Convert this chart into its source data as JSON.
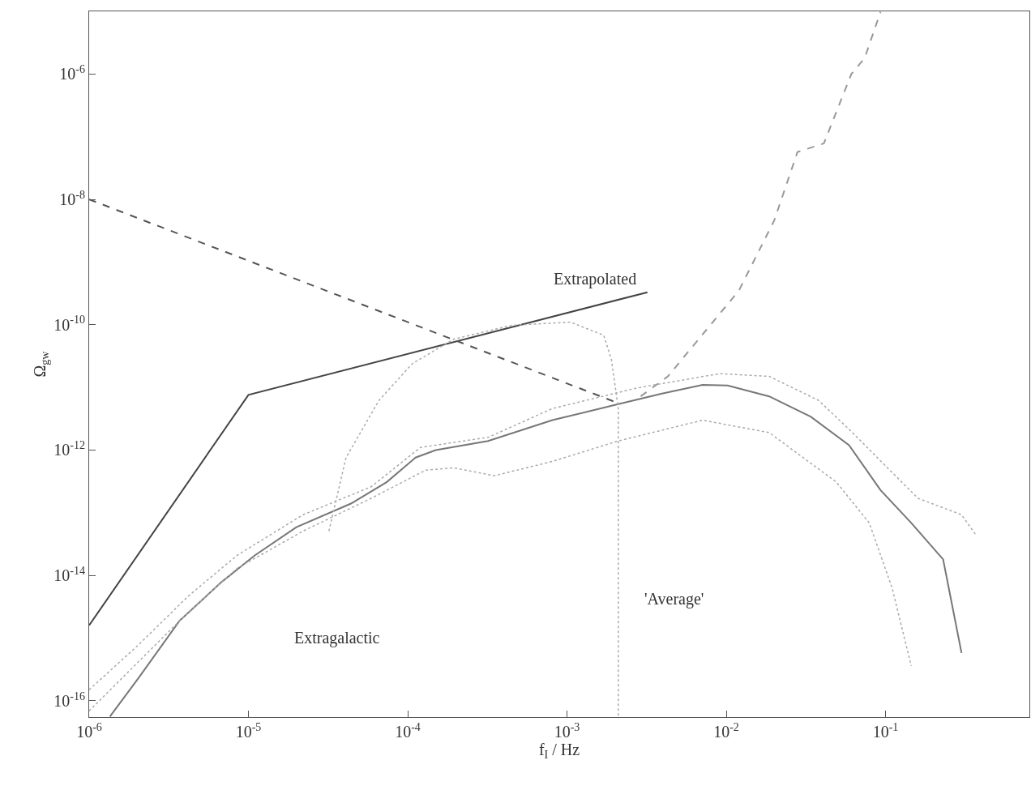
{
  "chart_data": {
    "type": "line",
    "xlabel": "f$_{I}$ / Hz",
    "ylabel": "Ω$_{gw}$",
    "log": "xy",
    "grid": false,
    "xlim": [
      1e-06,
      0.8
    ],
    "ylim": [
      5.5e-17,
      1e-05
    ],
    "xticks": [
      {
        "value": 1e-06,
        "label": "10$^{-6}$"
      },
      {
        "value": 1e-05,
        "label": "10$^{-5}$"
      },
      {
        "value": 0.0001,
        "label": "10$^{-4}$"
      },
      {
        "value": 0.001,
        "label": "10$^{-3}$"
      },
      {
        "value": 0.01,
        "label": "10$^{-2}$"
      },
      {
        "value": 0.1,
        "label": "10$^{-1}$"
      }
    ],
    "yticks": [
      {
        "value": 1e-16,
        "label": "10$^{-16}$"
      },
      {
        "value": 1e-14,
        "label": "10$^{-14}$"
      },
      {
        "value": 1e-12,
        "label": "10$^{-12}$"
      },
      {
        "value": 1e-10,
        "label": "10$^{-10}$"
      },
      {
        "value": 1e-08,
        "label": "10$^{-8}$"
      },
      {
        "value": 1e-06,
        "label": "10$^{-6}$"
      }
    ],
    "annotations": [
      "Extrapolated",
      "Extragalactic",
      "'Average'"
    ],
    "series": [
      {
        "color": "#444444",
        "line_style": "solid",
        "x": [
          1e-06,
          1e-05,
          0.0032
        ],
        "values": [
          1.6e-15,
          7.6e-12,
          3.3e-10
        ]
      },
      {
        "color": "#555555",
        "line_style": "dashed",
        "x": [
          1e-06,
          0.0021
        ],
        "values": [
          1e-08,
          5.6e-12
        ]
      },
      {
        "color": "#999999",
        "line_style": "dashed",
        "x": [
          0.0029,
          0.0043,
          0.012,
          0.02,
          0.028,
          0.041,
          0.061,
          0.074,
          0.093
        ],
        "values": [
          7.2e-12,
          1.5e-11,
          3.5e-10,
          4.6e-09,
          5.7e-08,
          7.8e-08,
          1e-06,
          1.8e-06,
          9.8e-06
        ]
      },
      {
        "color": "#777777",
        "line_style": "solid",
        "x": [
          1.35e-06,
          2.04e-06,
          3.7e-06,
          6.8e-06,
          1.1e-05,
          2e-05,
          4.4e-05,
          7.4e-05,
          0.000112,
          0.00015,
          0.00032,
          0.00081,
          0.0021,
          0.0039,
          0.0071,
          0.0102,
          0.0186,
          0.034,
          0.059,
          0.093,
          0.145,
          0.23,
          0.3
        ],
        "values": [
          5.6e-17,
          2.3e-16,
          1.9e-15,
          7.9e-15,
          2.1e-14,
          5.9e-14,
          1.4e-13,
          3.1e-13,
          7.6e-13,
          1e-12,
          1.4e-12,
          3e-12,
          5.4e-12,
          7.9e-12,
          1.1e-11,
          1.07e-11,
          7.2e-12,
          3.4e-12,
          1.2e-12,
          2.3e-13,
          6.9e-14,
          1.8e-14,
          5.8e-16
        ]
      },
      {
        "color": "#aaaaaa",
        "line_style": "dotted",
        "x": [
          1e-06,
          2.04e-06,
          4.2e-06,
          8.5e-06,
          2.2e-05,
          5.9e-05,
          0.00012,
          0.00032,
          0.00081,
          0.00275,
          0.0091,
          0.0186,
          0.038,
          0.062,
          0.1,
          0.16,
          0.3,
          0.37
        ],
        "values": [
          1.5e-16,
          7.8e-16,
          4.7e-15,
          2.1e-14,
          9.3e-14,
          2.6e-13,
          1.1e-12,
          1.6e-12,
          4.6e-12,
          9.8e-12,
          1.66e-11,
          1.5e-11,
          6.2e-12,
          1.9e-12,
          5.6e-13,
          1.7e-13,
          9.3e-14,
          4.4e-14
        ]
      },
      {
        "color": "#aaaaaa",
        "line_style": "dotted",
        "x": [
          1e-06,
          2.04e-06,
          4.2e-06,
          8.5e-06,
          2.2e-05,
          5.9e-05,
          0.00013,
          0.000195,
          0.00035,
          0.00081,
          0.0021,
          0.0071,
          0.0186,
          0.049,
          0.079,
          0.11,
          0.145
        ],
        "values": [
          6.9e-17,
          4.2e-16,
          2.6e-15,
          1.3e-14,
          5.1e-14,
          1.7e-13,
          4.8e-13,
          5.2e-13,
          3.9e-13,
          6.6e-13,
          1.4e-12,
          3e-12,
          1.9e-12,
          3.1e-13,
          6.9e-14,
          6.3e-15,
          3.6e-16
        ]
      },
      {
        "color": "#aaaaaa",
        "line_style": "dotted",
        "x": [
          3.2e-05,
          4.1e-05,
          6.6e-05,
          0.000107,
          0.000195,
          0.00045,
          0.00105,
          0.0017,
          0.0019,
          0.0021,
          0.0021
        ],
        "values": [
          5.1e-14,
          7.6e-13,
          6.2e-12,
          2.4e-11,
          5.9e-11,
          9.8e-11,
          1.1e-10,
          6.8e-11,
          2.8e-11,
          4.6e-12,
          5.6e-17
        ]
      }
    ]
  }
}
